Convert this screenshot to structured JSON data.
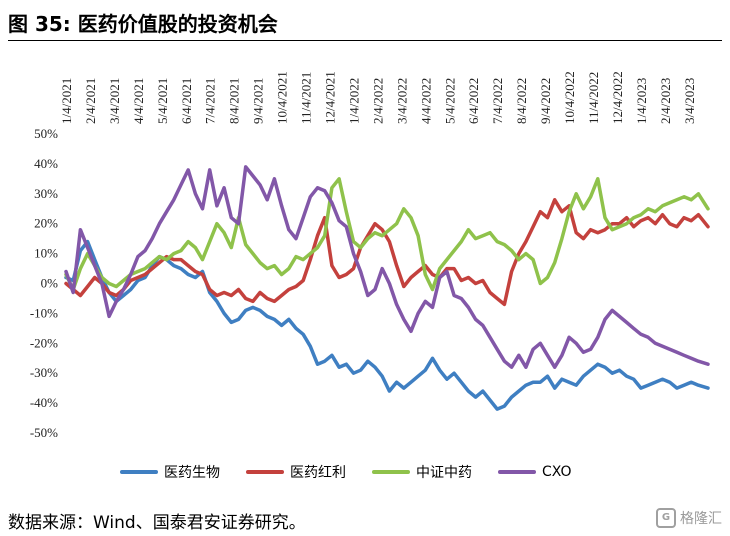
{
  "figure": {
    "title": "图 35:  医药价值股的投资机会",
    "source": "数据来源：Wind、国泰君安证券研究。",
    "watermark": "格隆汇",
    "watermark_mark": "G"
  },
  "colors": {
    "医药生物": "#3f7fc2",
    "医药红利": "#c4413d",
    "中证中药": "#8fc24b",
    "CXO": "#8257a8"
  },
  "chart_data": {
    "type": "line",
    "title": "",
    "xlabel": "",
    "ylabel": "",
    "ylim": [
      -50,
      50
    ],
    "y_ticks": [
      50,
      40,
      30,
      20,
      10,
      0,
      -10,
      -20,
      -30,
      -40,
      -50
    ],
    "y_tick_labels": [
      "50%",
      "40%",
      "30%",
      "20%",
      "10%",
      "0%",
      "-10%",
      "-20%",
      "-30%",
      "-40%",
      "-50%"
    ],
    "x_tick_labels": [
      "1/4/2021",
      "2/4/2021",
      "3/4/2021",
      "4/4/2021",
      "5/4/2021",
      "6/4/2021",
      "7/4/2021",
      "8/4/2021",
      "9/4/2021",
      "10/4/2021",
      "11/4/2021",
      "12/4/2021",
      "1/4/2022",
      "2/4/2022",
      "3/4/2022",
      "4/4/2022",
      "5/4/2022",
      "6/4/2022",
      "7/4/2022",
      "8/4/2022",
      "9/4/2022",
      "10/4/2022",
      "11/4/2022",
      "12/4/2022",
      "1/4/2023",
      "2/4/2023",
      "3/4/2023"
    ],
    "x_end_month_index": 26.8,
    "grid": false,
    "legend_position": "bottom",
    "series": [
      {
        "name": "医药生物",
        "x": [
          0,
          0.3,
          0.6,
          0.9,
          1.2,
          1.5,
          1.8,
          2.1,
          2.4,
          2.7,
          3.0,
          3.3,
          3.6,
          3.9,
          4.2,
          4.5,
          4.8,
          5.1,
          5.4,
          5.7,
          6.0,
          6.3,
          6.6,
          6.9,
          7.2,
          7.5,
          7.8,
          8.1,
          8.4,
          8.7,
          9.0,
          9.3,
          9.6,
          9.9,
          10.2,
          10.5,
          10.8,
          11.1,
          11.4,
          11.7,
          12.0,
          12.3,
          12.6,
          12.9,
          13.2,
          13.5,
          13.8,
          14.1,
          14.4,
          14.7,
          15.0,
          15.3,
          15.6,
          15.9,
          16.2,
          16.5,
          16.8,
          17.1,
          17.4,
          17.7,
          18.0,
          18.3,
          18.6,
          18.9,
          19.2,
          19.5,
          19.8,
          20.1,
          20.4,
          20.7,
          21.0,
          21.3,
          21.6,
          21.9,
          22.2,
          22.5,
          22.8,
          23.1,
          23.4,
          23.7,
          24.0,
          24.3,
          24.6,
          24.9,
          25.2,
          25.5,
          25.8,
          26.1,
          26.4,
          26.8
        ],
        "values": [
          2,
          1,
          11,
          14,
          8,
          2,
          -3,
          -6,
          -4,
          -2,
          1,
          2,
          6,
          9,
          8,
          6,
          5,
          3,
          2,
          4,
          -3,
          -6,
          -10,
          -13,
          -12,
          -9,
          -8,
          -9,
          -11,
          -12,
          -14,
          -12,
          -15,
          -17,
          -21,
          -27,
          -26,
          -24,
          -28,
          -27,
          -30,
          -29,
          -26,
          -28,
          -31,
          -36,
          -33,
          -35,
          -33,
          -31,
          -29,
          -25,
          -29,
          -32,
          -30,
          -33,
          -36,
          -38,
          -36,
          -39,
          -42,
          -41,
          -38,
          -36,
          -34,
          -33,
          -33,
          -31,
          -35,
          -32,
          -33,
          -34,
          -31,
          -29,
          -27,
          -28,
          -30,
          -29,
          -31,
          -32,
          -35,
          -34,
          -33,
          -32,
          -33,
          -35,
          -34,
          -33,
          -34,
          -35
        ]
      },
      {
        "name": "医药红利",
        "x": [
          0,
          0.3,
          0.6,
          0.9,
          1.2,
          1.5,
          1.8,
          2.1,
          2.4,
          2.7,
          3.0,
          3.3,
          3.6,
          3.9,
          4.2,
          4.5,
          4.8,
          5.1,
          5.4,
          5.7,
          6.0,
          6.3,
          6.6,
          6.9,
          7.2,
          7.5,
          7.8,
          8.1,
          8.4,
          8.7,
          9.0,
          9.3,
          9.6,
          9.9,
          10.2,
          10.5,
          10.8,
          11.1,
          11.4,
          11.7,
          12.0,
          12.3,
          12.6,
          12.9,
          13.2,
          13.5,
          13.8,
          14.1,
          14.4,
          14.7,
          15.0,
          15.3,
          15.6,
          15.9,
          16.2,
          16.5,
          16.8,
          17.1,
          17.4,
          17.7,
          18.0,
          18.3,
          18.6,
          18.9,
          19.2,
          19.5,
          19.8,
          20.1,
          20.4,
          20.7,
          21.0,
          21.3,
          21.6,
          21.9,
          22.2,
          22.5,
          22.8,
          23.1,
          23.4,
          23.7,
          24.0,
          24.3,
          24.6,
          24.9,
          25.2,
          25.5,
          25.8,
          26.1,
          26.4,
          26.8
        ],
        "values": [
          0,
          -2,
          -4,
          -1,
          2,
          0,
          -3,
          -4,
          -2,
          1,
          2,
          3,
          5,
          7,
          9,
          8,
          8,
          6,
          4,
          3,
          -2,
          -4,
          -3,
          -4,
          -2,
          -5,
          -6,
          -3,
          -5,
          -6,
          -4,
          -2,
          -1,
          1,
          8,
          16,
          22,
          6,
          2,
          3,
          5,
          12,
          16,
          20,
          18,
          14,
          6,
          -1,
          2,
          4,
          6,
          3,
          2,
          5,
          5,
          1,
          2,
          0,
          1,
          -3,
          -5,
          -7,
          4,
          10,
          14,
          19,
          24,
          22,
          28,
          24,
          26,
          17,
          15,
          18,
          17,
          18,
          20,
          20,
          22,
          19,
          21,
          22,
          20,
          23,
          20,
          19,
          22,
          21,
          23,
          19
        ]
      },
      {
        "name": "中证中药",
        "x": [
          0,
          0.3,
          0.6,
          0.9,
          1.2,
          1.5,
          1.8,
          2.1,
          2.4,
          2.7,
          3.0,
          3.3,
          3.6,
          3.9,
          4.2,
          4.5,
          4.8,
          5.1,
          5.4,
          5.7,
          6.0,
          6.3,
          6.6,
          6.9,
          7.2,
          7.5,
          7.8,
          8.1,
          8.4,
          8.7,
          9.0,
          9.3,
          9.6,
          9.9,
          10.2,
          10.5,
          10.8,
          11.1,
          11.4,
          11.7,
          12.0,
          12.3,
          12.6,
          12.9,
          13.2,
          13.5,
          13.8,
          14.1,
          14.4,
          14.7,
          15.0,
          15.3,
          15.6,
          15.9,
          16.2,
          16.5,
          16.8,
          17.1,
          17.4,
          17.7,
          18.0,
          18.3,
          18.6,
          18.9,
          19.2,
          19.5,
          19.8,
          20.1,
          20.4,
          20.7,
          21.0,
          21.3,
          21.6,
          21.9,
          22.2,
          22.5,
          22.8,
          23.1,
          23.4,
          23.7,
          24.0,
          24.3,
          24.6,
          24.9,
          25.2,
          25.5,
          25.8,
          26.1,
          26.4,
          26.8
        ],
        "values": [
          3,
          -2,
          5,
          10,
          6,
          2,
          0,
          -1,
          1,
          3,
          4,
          5,
          7,
          9,
          8,
          10,
          11,
          14,
          12,
          8,
          14,
          20,
          17,
          12,
          22,
          13,
          10,
          7,
          5,
          6,
          3,
          5,
          9,
          8,
          10,
          12,
          16,
          32,
          35,
          24,
          14,
          12,
          15,
          17,
          16,
          18,
          20,
          25,
          22,
          16,
          3,
          -2,
          5,
          8,
          11,
          14,
          18,
          15,
          16,
          17,
          14,
          13,
          11,
          8,
          10,
          8,
          0,
          2,
          7,
          15,
          24,
          30,
          25,
          29,
          35,
          22,
          18,
          19,
          20,
          22,
          23,
          25,
          24,
          26,
          27,
          28,
          29,
          28,
          30,
          25
        ]
      },
      {
        "name": "CXO",
        "x": [
          0,
          0.3,
          0.6,
          0.9,
          1.2,
          1.5,
          1.8,
          2.1,
          2.4,
          2.7,
          3.0,
          3.3,
          3.6,
          3.9,
          4.2,
          4.5,
          4.8,
          5.1,
          5.4,
          5.7,
          6.0,
          6.3,
          6.6,
          6.9,
          7.2,
          7.5,
          7.8,
          8.1,
          8.4,
          8.7,
          9.0,
          9.3,
          9.6,
          9.9,
          10.2,
          10.5,
          10.8,
          11.1,
          11.4,
          11.7,
          12.0,
          12.3,
          12.6,
          12.9,
          13.2,
          13.5,
          13.8,
          14.1,
          14.4,
          14.7,
          15.0,
          15.3,
          15.6,
          15.9,
          16.2,
          16.5,
          16.8,
          17.1,
          17.4,
          17.7,
          18.0,
          18.3,
          18.6,
          18.9,
          19.2,
          19.5,
          19.8,
          20.1,
          20.4,
          20.7,
          21.0,
          21.3,
          21.6,
          21.9,
          22.2,
          22.5,
          22.8,
          23.1,
          23.4,
          23.7,
          24.0,
          24.3,
          24.6,
          24.9,
          25.2,
          25.5,
          25.8,
          26.1,
          26.4,
          26.8
        ],
        "values": [
          4,
          -3,
          18,
          12,
          6,
          0,
          -11,
          -6,
          -2,
          3,
          9,
          11,
          15,
          20,
          24,
          28,
          33,
          38,
          30,
          25,
          38,
          26,
          32,
          22,
          20,
          39,
          36,
          33,
          28,
          35,
          26,
          18,
          15,
          22,
          29,
          32,
          31,
          27,
          21,
          19,
          10,
          4,
          -4,
          -2,
          5,
          0,
          -7,
          -12,
          -16,
          -10,
          -6,
          -8,
          2,
          4,
          -4,
          -5,
          -8,
          -12,
          -14,
          -18,
          -22,
          -26,
          -28,
          -24,
          -28,
          -22,
          -20,
          -24,
          -28,
          -24,
          -18,
          -20,
          -23,
          -22,
          -18,
          -12,
          -9,
          -11,
          -13,
          -15,
          -17,
          -18,
          -20,
          -21,
          -22,
          -23,
          -24,
          -25,
          -26,
          -27
        ]
      }
    ]
  }
}
